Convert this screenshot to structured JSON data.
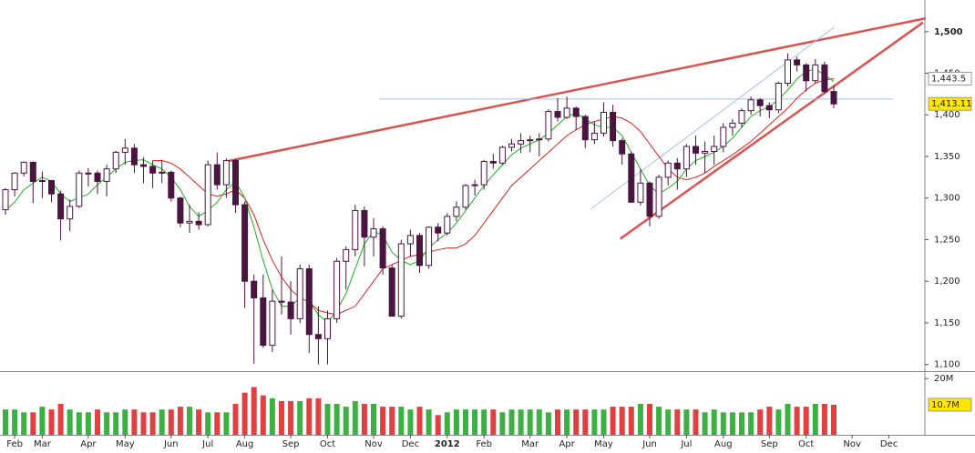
{
  "chart_data": {
    "type": "candlestick",
    "categories": [
      null,
      "Feb",
      null,
      null,
      "Mar",
      null,
      null,
      null,
      null,
      "Apr",
      null,
      null,
      null,
      "May",
      null,
      null,
      null,
      null,
      "Jun",
      null,
      null,
      null,
      "Jul",
      null,
      null,
      null,
      "Aug",
      null,
      null,
      null,
      null,
      "Sep",
      null,
      null,
      null,
      "Oct",
      null,
      null,
      null,
      null,
      "Nov",
      null,
      null,
      null,
      "Dec",
      null,
      null,
      null,
      "2012",
      null,
      null,
      null,
      "Feb",
      null,
      null,
      null,
      null,
      "Mar",
      null,
      null,
      null,
      "Apr",
      null,
      null,
      null,
      "May",
      null,
      null,
      null,
      null,
      "Jun",
      null,
      null,
      null,
      "Jul",
      null,
      null,
      null,
      "Aug",
      null,
      null,
      null,
      null,
      "Sep",
      null,
      null,
      null,
      "Oct",
      null,
      null,
      null,
      null,
      "Nov",
      null,
      null,
      null,
      "Dec",
      null,
      null,
      null
    ],
    "open": [
      1286,
      1310,
      1330,
      1343,
      1320,
      1321,
      1305,
      1275,
      1290,
      1330,
      1330,
      1320,
      1335,
      1355,
      1360,
      1340,
      1338,
      1330,
      1331,
      1300,
      1270,
      1272,
      1268,
      1340,
      1316,
      1345,
      1292,
      1200,
      1180,
      1123,
      1176,
      1175,
      1155,
      1215,
      1136,
      1131,
      1155,
      1224,
      1238,
      1285,
      1253,
      1263,
      1216,
      1158,
      1245,
      1255,
      1219,
      1265,
      1258,
      1278,
      1289,
      1315,
      1316,
      1344,
      1342,
      1361,
      1365,
      1369,
      1370,
      1371,
      1404,
      1397,
      1408,
      1398,
      1370,
      1378,
      1403,
      1369,
      1353,
      1295,
      1318,
      1278,
      1325,
      1342,
      1335,
      1362,
      1354,
      1356,
      1362,
      1385,
      1390,
      1405,
      1418,
      1411,
      1406,
      1438,
      1466,
      1460,
      1441,
      1460,
      1428,
      null,
      null,
      null,
      null,
      null,
      null,
      null,
      null,
      null
    ],
    "high": [
      1312,
      1331,
      1344,
      1344,
      1332,
      1322,
      1309,
      1298,
      1333,
      1336,
      1333,
      1340,
      1357,
      1371,
      1365,
      1349,
      1345,
      1346,
      1333,
      1302,
      1292,
      1283,
      1345,
      1355,
      1348,
      1347,
      1296,
      1208,
      1208,
      1190,
      1230,
      1200,
      1220,
      1220,
      1170,
      1165,
      1228,
      1242,
      1292,
      1290,
      1276,
      1266,
      1220,
      1250,
      1262,
      1258,
      1266,
      1270,
      1282,
      1296,
      1317,
      1322,
      1346,
      1353,
      1363,
      1371,
      1378,
      1375,
      1378,
      1407,
      1420,
      1422,
      1410,
      1400,
      1392,
      1415,
      1412,
      1372,
      1356,
      1335,
      1320,
      1328,
      1345,
      1348,
      1365,
      1375,
      1368,
      1375,
      1390,
      1395,
      1408,
      1422,
      1420,
      1415,
      1440,
      1474,
      1470,
      1462,
      1467,
      1464,
      1435,
      null,
      null,
      null,
      null,
      null,
      null,
      null,
      null,
      null
    ],
    "low": [
      1280,
      1302,
      1326,
      1294,
      1300,
      1295,
      1249,
      1260,
      1288,
      1314,
      1305,
      1302,
      1330,
      1340,
      1330,
      1318,
      1312,
      1318,
      1296,
      1265,
      1258,
      1262,
      1266,
      1310,
      1300,
      1282,
      1168,
      1101,
      1120,
      1115,
      1160,
      1136,
      1150,
      1114,
      1100,
      1100,
      1150,
      1190,
      1230,
      1218,
      1230,
      1208,
      1158,
      1155,
      1230,
      1210,
      1215,
      1248,
      1255,
      1272,
      1286,
      1303,
      1310,
      1335,
      1340,
      1356,
      1354,
      1355,
      1350,
      1368,
      1392,
      1395,
      1382,
      1360,
      1365,
      1374,
      1362,
      1340,
      1295,
      1291,
      1266,
      1275,
      1315,
      1310,
      1325,
      1340,
      1330,
      1340,
      1355,
      1375,
      1385,
      1400,
      1398,
      1396,
      1402,
      1434,
      1452,
      1428,
      1438,
      1425,
      1408,
      null,
      null,
      null,
      null,
      null,
      null,
      null,
      null,
      null
    ],
    "close": [
      1310,
      1330,
      1343,
      1320,
      1321,
      1305,
      1275,
      1290,
      1330,
      1330,
      1320,
      1335,
      1355,
      1360,
      1340,
      1338,
      1330,
      1331,
      1300,
      1270,
      1272,
      1268,
      1340,
      1316,
      1345,
      1292,
      1200,
      1180,
      1123,
      1176,
      1175,
      1155,
      1215,
      1136,
      1131,
      1155,
      1224,
      1238,
      1285,
      1253,
      1263,
      1216,
      1158,
      1245,
      1255,
      1219,
      1265,
      1258,
      1278,
      1289,
      1315,
      1316,
      1344,
      1342,
      1361,
      1365,
      1369,
      1370,
      1371,
      1404,
      1397,
      1408,
      1398,
      1370,
      1378,
      1403,
      1369,
      1353,
      1295,
      1318,
      1278,
      1325,
      1342,
      1335,
      1362,
      1354,
      1356,
      1362,
      1385,
      1390,
      1405,
      1418,
      1411,
      1406,
      1438,
      1466,
      1460,
      1441,
      1460,
      1428,
      1413.11,
      null,
      null,
      null,
      null,
      null,
      null,
      null,
      null,
      null
    ],
    "candle_color": "#4a1540",
    "moving_averages": [
      {
        "color": "#e02020",
        "values": [
          null,
          null,
          null,
          null,
          null,
          null,
          null,
          null,
          null,
          null,
          null,
          null,
          null,
          null,
          null,
          null,
          1345,
          1345,
          1342,
          1335,
          1325,
          1315,
          1305,
          1302,
          1305,
          1310,
          1300,
          1280,
          1250,
          1225,
          1205,
          1190,
          1180,
          1175,
          1165,
          1162,
          1160,
          1165,
          1170,
          1185,
          1200,
          1215,
          1220,
          1225,
          1230,
          1232,
          1235,
          1238,
          1240,
          1240,
          1245,
          1255,
          1270,
          1285,
          1300,
          1315,
          1325,
          1335,
          1345,
          1355,
          1365,
          1375,
          1382,
          1388,
          1392,
          1395,
          1398,
          1396,
          1390,
          1380,
          1365,
          1350,
          1335,
          1325,
          1322,
          1325,
          1330,
          1338,
          1345,
          1352,
          1360,
          1368,
          1378,
          1388,
          1398,
          1408,
          1420,
          1430,
          1438,
          1442,
          1443.5,
          null,
          null,
          null,
          null,
          null,
          null,
          null,
          null,
          null
        ]
      },
      {
        "color": "#22b022",
        "values": [
          1285,
          1295,
          1310,
          1318,
          1325,
          1320,
          1305,
          1296,
          1300,
          1305,
          1316,
          1325,
          1335,
          1343,
          1345,
          1346,
          1340,
          1335,
          1325,
          1310,
          1290,
          1278,
          1285,
          1295,
          1310,
          1320,
          1300,
          1265,
          1225,
          1190,
          1170,
          1170,
          1180,
          1175,
          1160,
          1150,
          1165,
          1185,
          1215,
          1245,
          1260,
          1255,
          1235,
          1225,
          1220,
          1225,
          1240,
          1250,
          1258,
          1270,
          1285,
          1300,
          1315,
          1328,
          1340,
          1352,
          1360,
          1365,
          1370,
          1378,
          1388,
          1398,
          1402,
          1395,
          1388,
          1385,
          1385,
          1375,
          1355,
          1335,
          1315,
          1305,
          1312,
          1320,
          1335,
          1345,
          1350,
          1355,
          1362,
          1372,
          1385,
          1398,
          1405,
          1410,
          1418,
          1430,
          1443,
          1452,
          1455,
          1448,
          1440,
          null,
          null,
          null,
          null,
          null,
          null,
          null,
          null,
          null
        ]
      }
    ],
    "ma_label": "1,443.5",
    "last_close_label": "1,413.11",
    "trendlines": [
      {
        "color": "#d9534f",
        "from": [
          24,
          1344
        ],
        "to": [
          100,
          1516
        ]
      },
      {
        "color": "#d9534f",
        "from": [
          66.8,
          1251
        ],
        "to": [
          99.7,
          1511
        ]
      },
      {
        "color": "#a9bfe8",
        "from": [
          63.6,
          1287
        ],
        "to": [
          90,
          1505
        ]
      },
      {
        "color": "#a9bfe8",
        "from": [
          40.6,
          1419
        ],
        "to": [
          96.4,
          1419
        ]
      }
    ],
    "ylim": [
      1092,
      1538
    ],
    "yticks": [
      {
        "value": 1100,
        "label": "1,100"
      },
      {
        "value": 1150,
        "label": "1,150"
      },
      {
        "value": 1200,
        "label": "1,200"
      },
      {
        "value": 1250,
        "label": "1,250"
      },
      {
        "value": 1300,
        "label": "1,300"
      },
      {
        "value": 1350,
        "label": "1,350"
      },
      {
        "value": 1400,
        "label": "1,400"
      },
      {
        "value": 1450,
        "label": "1,450"
      },
      {
        "value": 1500,
        "label": "1,500"
      }
    ],
    "volume": [
      9,
      9,
      8,
      8,
      10,
      9,
      11,
      9,
      8,
      8,
      9,
      8,
      8,
      9,
      9,
      8,
      8,
      9,
      9,
      10,
      10,
      9,
      8,
      8,
      8,
      11,
      15,
      17,
      14,
      13,
      12,
      12,
      12,
      13,
      13,
      11,
      11,
      10,
      12,
      11,
      11,
      10,
      10,
      10,
      9,
      10,
      9,
      7,
      8,
      9,
      9,
      9,
      9,
      9,
      8,
      9,
      9,
      9,
      9,
      8,
      9,
      9,
      9,
      9,
      9,
      9,
      10,
      10,
      10,
      11,
      11,
      10,
      9,
      9,
      9,
      9,
      8,
      9,
      8,
      8,
      8,
      8,
      9,
      10,
      9,
      11,
      10,
      10,
      11,
      11,
      10.7,
      null,
      null,
      null,
      null,
      null,
      null,
      null,
      null,
      null
    ],
    "volume_up_color": "#3cb043",
    "volume_down_color": "#e04040",
    "volume_last_label": "10.7M",
    "vylim": [
      0,
      22
    ],
    "vyticks": [
      {
        "value": 20,
        "label": "20M"
      }
    ]
  }
}
